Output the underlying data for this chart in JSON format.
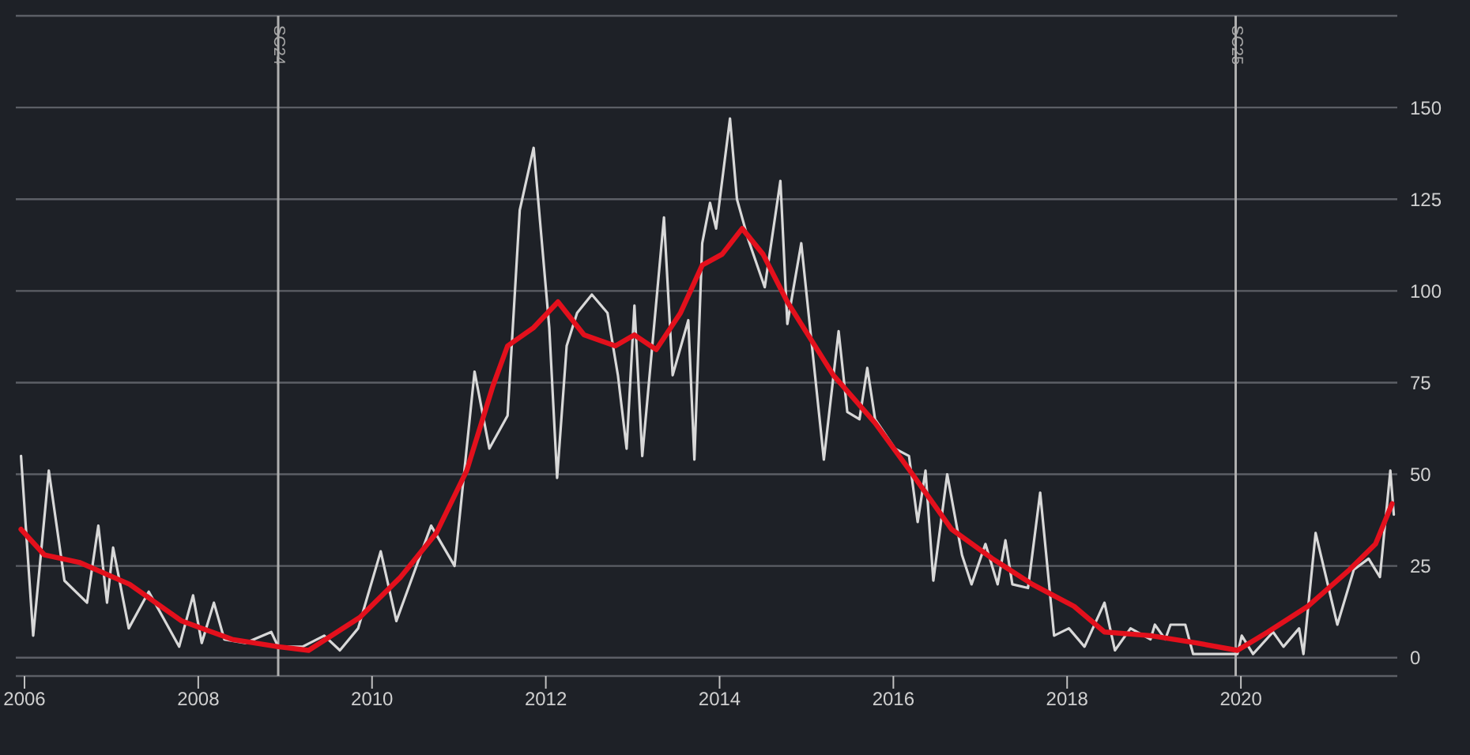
{
  "chart_data": {
    "type": "line",
    "xlim": [
      2005.9,
      2021.8
    ],
    "xticks": [
      2006,
      2008,
      2010,
      2012,
      2014,
      2016,
      2018,
      2020
    ],
    "ylim": [
      -5,
      175
    ],
    "yticks": [
      0,
      25,
      50,
      75,
      100,
      125,
      150,
      {
        "value": 175,
        "label": null
      }
    ],
    "grid": "y",
    "marker": "none",
    "line_style": "solid",
    "series": [
      {
        "color": "#d8d8d8",
        "x": [
          2005.96,
          2006.1,
          2006.28,
          2006.46,
          2006.72,
          2006.85,
          2006.95,
          2007.02,
          2007.2,
          2007.43,
          2007.78,
          2007.94,
          2008.04,
          2008.18,
          2008.3,
          2008.54,
          2008.84,
          2008.92,
          2009.2,
          2009.45,
          2009.63,
          2009.84,
          2010.1,
          2010.28,
          2010.68,
          2010.95,
          2011.18,
          2011.35,
          2011.56,
          2011.7,
          2011.86,
          2012.04,
          2012.13,
          2012.24,
          2012.36,
          2012.53,
          2012.71,
          2012.83,
          2012.93,
          2013.02,
          2013.11,
          2013.36,
          2013.46,
          2013.64,
          2013.71,
          2013.8,
          2013.89,
          2013.96,
          2014.12,
          2014.2,
          2014.33,
          2014.52,
          2014.7,
          2014.78,
          2014.94,
          2015.05,
          2015.2,
          2015.37,
          2015.47,
          2015.61,
          2015.7,
          2015.79,
          2016.02,
          2016.18,
          2016.28,
          2016.37,
          2016.46,
          2016.62,
          2016.79,
          2016.9,
          2017.06,
          2017.2,
          2017.29,
          2017.37,
          2017.55,
          2017.69,
          2017.85,
          2018.02,
          2018.2,
          2018.43,
          2018.55,
          2018.73,
          2018.96,
          2019.01,
          2019.13,
          2019.19,
          2019.36,
          2019.45,
          2019.96,
          2020.01,
          2020.14,
          2020.37,
          2020.49,
          2020.67,
          2020.72,
          2020.86,
          2021.11,
          2021.3,
          2021.47,
          2021.6,
          2021.72,
          2021.76
        ],
        "values": [
          55,
          6,
          51,
          21,
          15,
          36,
          15,
          30,
          8,
          18,
          3,
          17,
          4,
          15,
          5,
          4,
          7,
          3,
          3,
          6,
          2,
          8,
          29,
          10,
          36,
          25,
          78,
          57,
          66,
          122,
          139,
          90,
          49,
          85,
          94,
          99,
          94,
          77,
          57,
          96,
          55,
          120,
          77,
          92,
          54,
          113,
          124,
          117,
          147,
          125,
          114,
          101,
          130,
          91,
          113,
          88,
          54,
          89,
          67,
          65,
          79,
          65,
          57,
          55,
          37,
          51,
          21,
          50,
          28,
          20,
          31,
          20,
          32,
          20,
          19,
          45,
          6,
          8,
          3,
          15,
          2,
          8,
          5,
          9,
          5,
          9,
          9,
          1,
          1,
          6,
          1,
          7,
          3,
          8,
          1,
          34,
          9,
          24,
          27,
          22,
          51,
          39
        ]
      },
      {
        "color": "#e3101c",
        "x": [
          2005.96,
          2006.23,
          2006.63,
          2007.21,
          2007.81,
          2008.39,
          2008.92,
          2009.27,
          2009.86,
          2010.33,
          2010.74,
          2011.09,
          2011.39,
          2011.56,
          2011.86,
          2012.14,
          2012.44,
          2012.8,
          2013.02,
          2013.27,
          2013.55,
          2013.8,
          2014.03,
          2014.26,
          2014.5,
          2014.78,
          2015.31,
          2015.79,
          2016.19,
          2016.67,
          2017.14,
          2017.6,
          2018.08,
          2018.43,
          2018.96,
          2019.49,
          2019.96,
          2020.31,
          2020.77,
          2021.25,
          2021.55,
          2021.74
        ],
        "values": [
          35,
          28,
          26,
          20,
          10,
          5,
          3,
          2,
          11,
          22,
          34,
          51,
          74,
          85,
          90,
          97,
          88,
          85,
          88,
          84,
          94,
          107,
          110,
          117,
          110,
          97,
          77,
          64,
          51,
          35,
          27,
          20,
          14,
          7,
          6,
          4,
          2,
          7,
          14,
          24,
          31,
          42
        ]
      }
    ],
    "ref_lines": [
      {
        "axis": "x",
        "value": 2008.92,
        "label": "SC24",
        "color": "#b0b0b0"
      },
      {
        "axis": "x",
        "value": 2019.94,
        "label": "SC25",
        "color": "#b0b0b0"
      }
    ]
  }
}
